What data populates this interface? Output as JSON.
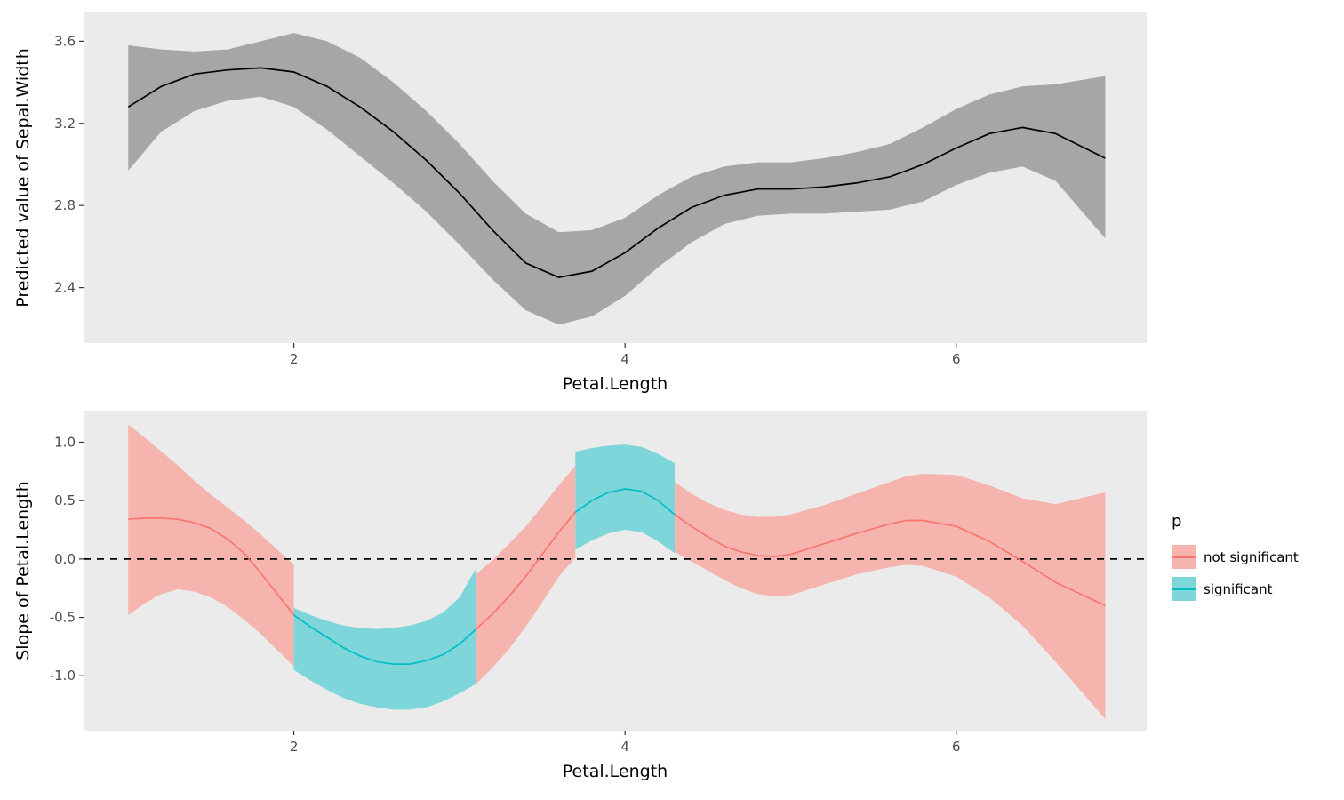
{
  "page": {
    "background": "#FFFFFF",
    "panel_color": "#EBEBEB",
    "tick_text_color": "#4D4D4D"
  },
  "chart_data": [
    {
      "id": "predicted-values",
      "type": "area",
      "title": "",
      "xlabel": "Petal.Length",
      "ylabel": "Predicted value of Sepal.Width",
      "xlim": [
        0.73,
        7.15
      ],
      "ylim": [
        2.13,
        3.74
      ],
      "grid": false,
      "zero_line": false,
      "panel_color": "#EBEBEB",
      "xticks": [
        {
          "v": 2,
          "label": "2"
        },
        {
          "v": 4,
          "label": "4"
        },
        {
          "v": 6,
          "label": "6"
        }
      ],
      "yticks": [
        {
          "v": 2.4,
          "label": "2.4"
        },
        {
          "v": 2.8,
          "label": "2.8"
        },
        {
          "v": 3.2,
          "label": "3.2"
        },
        {
          "v": 3.6,
          "label": "3.6"
        }
      ],
      "segments": [
        {
          "name": "gam-fit",
          "line_color": "#000000",
          "band_color": "#A6A6A6",
          "x": [
            1.0,
            1.2,
            1.4,
            1.6,
            1.8,
            2.0,
            2.2,
            2.4,
            2.6,
            2.8,
            3.0,
            3.2,
            3.4,
            3.6,
            3.8,
            4.0,
            4.2,
            4.4,
            4.6,
            4.8,
            5.0,
            5.2,
            5.4,
            5.6,
            5.8,
            6.0,
            6.2,
            6.4,
            6.6,
            6.9
          ],
          "y": [
            3.28,
            3.38,
            3.44,
            3.46,
            3.47,
            3.45,
            3.38,
            3.28,
            3.16,
            3.02,
            2.86,
            2.68,
            2.52,
            2.45,
            2.48,
            2.57,
            2.69,
            2.79,
            2.85,
            2.88,
            2.88,
            2.89,
            2.91,
            2.94,
            3.0,
            3.08,
            3.15,
            3.18,
            3.15,
            3.03
          ],
          "upper": [
            3.58,
            3.56,
            3.55,
            3.56,
            3.6,
            3.64,
            3.6,
            3.52,
            3.4,
            3.26,
            3.1,
            2.92,
            2.76,
            2.67,
            2.68,
            2.74,
            2.85,
            2.94,
            2.99,
            3.01,
            3.01,
            3.03,
            3.06,
            3.1,
            3.18,
            3.27,
            3.34,
            3.38,
            3.39,
            3.43
          ],
          "lower": [
            2.97,
            3.16,
            3.26,
            3.31,
            3.33,
            3.28,
            3.17,
            3.04,
            2.91,
            2.77,
            2.61,
            2.44,
            2.29,
            2.22,
            2.26,
            2.36,
            2.5,
            2.62,
            2.71,
            2.75,
            2.76,
            2.76,
            2.77,
            2.78,
            2.82,
            2.9,
            2.96,
            2.99,
            2.92,
            2.64
          ]
        }
      ]
    },
    {
      "id": "slope",
      "type": "area",
      "title": "",
      "xlabel": "Petal.Length",
      "ylabel": "Slope of Petal.Length",
      "xlim": [
        0.73,
        7.15
      ],
      "ylim": [
        -1.47,
        1.27
      ],
      "grid": false,
      "zero_line": true,
      "panel_color": "#EBEBEB",
      "xticks": [
        {
          "v": 2,
          "label": "2"
        },
        {
          "v": 4,
          "label": "4"
        },
        {
          "v": 6,
          "label": "6"
        }
      ],
      "yticks": [
        {
          "v": -1.0,
          "label": "-1.0"
        },
        {
          "v": -0.5,
          "label": "-0.5"
        },
        {
          "v": 0.0,
          "label": "0.0"
        },
        {
          "v": 0.5,
          "label": "0.5"
        },
        {
          "v": 1.0,
          "label": "1.0"
        }
      ],
      "segments": [
        {
          "name": "not-significant-1",
          "p": "not significant",
          "line_color": "#F8766D",
          "band_color": "#F5B4AE",
          "x": [
            1.0,
            1.1,
            1.2,
            1.3,
            1.4,
            1.5,
            1.6,
            1.7,
            1.8,
            1.9,
            2.0
          ],
          "y": [
            0.34,
            0.35,
            0.35,
            0.34,
            0.31,
            0.26,
            0.17,
            0.05,
            -0.12,
            -0.3,
            -0.48
          ],
          "upper": [
            1.15,
            1.04,
            0.92,
            0.8,
            0.67,
            0.55,
            0.44,
            0.33,
            0.21,
            0.08,
            -0.05
          ],
          "lower": [
            -0.48,
            -0.38,
            -0.3,
            -0.26,
            -0.28,
            -0.33,
            -0.41,
            -0.52,
            -0.64,
            -0.78,
            -0.92
          ]
        },
        {
          "name": "significant-1",
          "p": "significant",
          "line_color": "#00BFC4",
          "band_color": "#7ED6DA",
          "x": [
            2.0,
            2.1,
            2.2,
            2.3,
            2.4,
            2.5,
            2.6,
            2.7,
            2.8,
            2.9,
            3.0,
            3.1
          ],
          "y": [
            -0.48,
            -0.58,
            -0.67,
            -0.76,
            -0.83,
            -0.88,
            -0.9,
            -0.9,
            -0.87,
            -0.82,
            -0.73,
            -0.6
          ],
          "upper": [
            -0.42,
            -0.48,
            -0.53,
            -0.57,
            -0.59,
            -0.6,
            -0.59,
            -0.57,
            -0.53,
            -0.46,
            -0.33,
            -0.08
          ],
          "lower": [
            -0.95,
            -1.04,
            -1.12,
            -1.19,
            -1.24,
            -1.27,
            -1.29,
            -1.29,
            -1.27,
            -1.22,
            -1.15,
            -1.07
          ]
        },
        {
          "name": "not-significant-2",
          "p": "not significant",
          "line_color": "#F8766D",
          "band_color": "#F5B4AE",
          "x": [
            3.1,
            3.2,
            3.3,
            3.4,
            3.5,
            3.6,
            3.7
          ],
          "y": [
            -0.6,
            -0.47,
            -0.32,
            -0.15,
            0.04,
            0.23,
            0.4
          ],
          "upper": [
            -0.13,
            -0.01,
            0.13,
            0.28,
            0.45,
            0.63,
            0.8
          ],
          "lower": [
            -1.07,
            -0.93,
            -0.77,
            -0.58,
            -0.37,
            -0.15,
            0.01
          ]
        },
        {
          "name": "significant-2",
          "p": "significant",
          "line_color": "#00BFC4",
          "band_color": "#7ED6DA",
          "x": [
            3.7,
            3.8,
            3.9,
            4.0,
            4.1,
            4.2,
            4.3
          ],
          "y": [
            0.4,
            0.5,
            0.57,
            0.6,
            0.58,
            0.5,
            0.38
          ],
          "upper": [
            0.92,
            0.95,
            0.97,
            0.98,
            0.96,
            0.9,
            0.82
          ],
          "lower": [
            0.08,
            0.16,
            0.22,
            0.25,
            0.23,
            0.15,
            0.05
          ]
        },
        {
          "name": "not-significant-3",
          "p": "not significant",
          "line_color": "#F8766D",
          "band_color": "#F5B4AE",
          "x": [
            4.3,
            4.4,
            4.5,
            4.6,
            4.7,
            4.8,
            4.9,
            5.0,
            5.2,
            5.4,
            5.6,
            5.7,
            5.8,
            6.0,
            6.2,
            6.4,
            6.6,
            6.9
          ],
          "y": [
            0.38,
            0.28,
            0.19,
            0.11,
            0.06,
            0.03,
            0.02,
            0.04,
            0.13,
            0.22,
            0.3,
            0.33,
            0.33,
            0.28,
            0.15,
            -0.02,
            -0.2,
            -0.4
          ],
          "upper": [
            0.66,
            0.56,
            0.48,
            0.42,
            0.38,
            0.36,
            0.36,
            0.38,
            0.46,
            0.56,
            0.66,
            0.71,
            0.73,
            0.72,
            0.63,
            0.52,
            0.47,
            0.57
          ],
          "lower": [
            0.06,
            -0.02,
            -0.1,
            -0.18,
            -0.25,
            -0.3,
            -0.32,
            -0.31,
            -0.22,
            -0.13,
            -0.07,
            -0.05,
            -0.06,
            -0.15,
            -0.33,
            -0.57,
            -0.88,
            -1.37
          ]
        }
      ],
      "legend": {
        "title": "p",
        "position": "right",
        "items": [
          {
            "label": "not significant",
            "line_color": "#F8766D",
            "band_color": "#F5B4AE"
          },
          {
            "label": "significant",
            "line_color": "#00BFC4",
            "band_color": "#7ED6DA"
          }
        ]
      }
    }
  ]
}
